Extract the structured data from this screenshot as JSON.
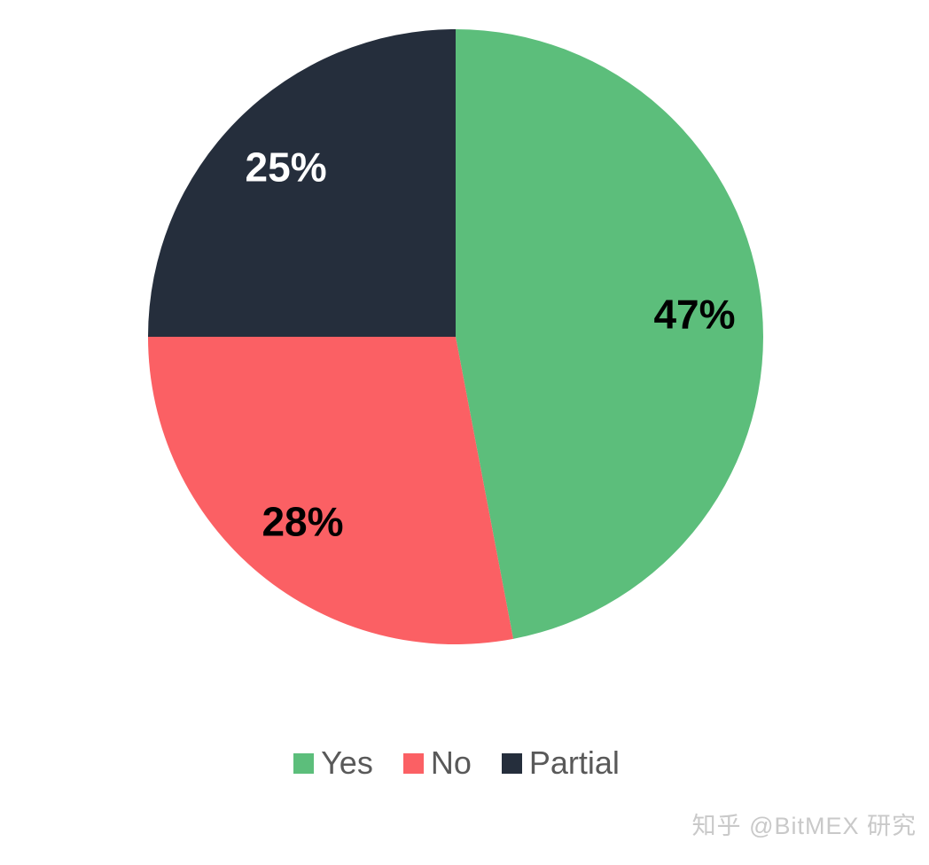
{
  "chart_data": {
    "type": "pie",
    "title": "",
    "start_angle_deg": 0,
    "direction": "clockwise",
    "legend_position": "bottom",
    "legend_text_color": "#595959",
    "background_color": "#ffffff",
    "slices": [
      {
        "label": "Yes",
        "value": 47,
        "display": "47%",
        "color": "#5cbe7b",
        "label_color": "#000000"
      },
      {
        "label": "No",
        "value": 28,
        "display": "28%",
        "color": "#fb6064",
        "label_color": "#000000"
      },
      {
        "label": "Partial",
        "value": 25,
        "display": "25%",
        "color": "#252e3c",
        "label_color": "#ffffff"
      }
    ]
  },
  "watermark": {
    "text": "知乎 @BitMEX 研究",
    "color": "#c9c9c9"
  }
}
